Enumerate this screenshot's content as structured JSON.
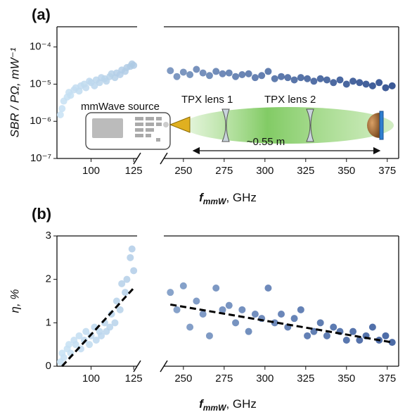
{
  "chart_data": [
    {
      "type": "scatter",
      "title": "(a)",
      "y_label": "SBR / PΩ, mW⁻¹",
      "x_label": {
        "symbol": "f",
        "subscript": "mmW",
        "unit": ", GHz"
      },
      "log_y": true,
      "ylim": [
        1e-07,
        0.00035
      ],
      "yticks": [
        {
          "value": 1e-07,
          "label": "10⁻⁷"
        },
        {
          "value": 1e-06,
          "label": "10⁻⁶"
        },
        {
          "value": 1e-05,
          "label": "10⁻⁵"
        },
        {
          "value": 0.0001,
          "label": "10⁻⁴"
        }
      ],
      "x_segments": [
        {
          "xlim": [
            80,
            127
          ],
          "xticks": [
            100,
            125
          ]
        },
        {
          "xlim": [
            238,
            382
          ],
          "xticks": [
            250,
            275,
            300,
            325,
            350,
            375
          ]
        }
      ],
      "colormap": [
        "#c9e3f5",
        "#173a82"
      ],
      "groups": [
        {
          "x": [
            82,
            83,
            84,
            86,
            87,
            88,
            90,
            91,
            93,
            94,
            96,
            97,
            99,
            100,
            102,
            103,
            105,
            106,
            108,
            109,
            111,
            112,
            114,
            115,
            117,
            118,
            120,
            121,
            123,
            124,
            125
          ],
          "values": [
            1.5e-06,
            2.2e-06,
            3.5e-06,
            4.5e-06,
            6e-06,
            5e-06,
            7e-06,
            8e-06,
            6.5e-06,
            9e-06,
            1e-05,
            8e-06,
            1.2e-05,
            1.1e-05,
            9e-06,
            1.3e-05,
            1.1e-05,
            1.5e-05,
            1.4e-05,
            1.2e-05,
            1.6e-05,
            1.9e-05,
            1.5e-05,
            2e-05,
            1.8e-05,
            2.4e-05,
            2.2e-05,
            2.8e-05,
            3e-05,
            3.5e-05,
            3.2e-05
          ]
        },
        {
          "x": [
            242,
            246,
            250,
            254,
            258,
            262,
            266,
            270,
            274,
            278,
            282,
            286,
            290,
            294,
            298,
            302,
            306,
            310,
            314,
            318,
            322,
            326,
            330,
            334,
            338,
            342,
            346,
            350,
            354,
            358,
            362,
            366,
            370,
            374,
            378
          ],
          "values": [
            2.3e-05,
            1.6e-05,
            2.1e-05,
            1.8e-05,
            2.5e-05,
            2e-05,
            1.7e-05,
            2.2e-05,
            1.9e-05,
            2e-05,
            1.6e-05,
            1.8e-05,
            1.9e-05,
            1.5e-05,
            1.7e-05,
            2.2e-05,
            1.4e-05,
            1.6e-05,
            1.5e-05,
            1.3e-05,
            1.5e-05,
            1.4e-05,
            1.2e-05,
            1.4e-05,
            1.3e-05,
            1.1e-05,
            1.3e-05,
            1e-05,
            1.2e-05,
            1.1e-05,
            1e-05,
            9e-06,
            1.1e-05,
            8e-06,
            9e-06
          ]
        }
      ],
      "annotations": {
        "source": "mmWave source",
        "lens1": "TPX lens 1",
        "lens2": "TPX lens 2",
        "distance": "~0.55 m"
      }
    },
    {
      "type": "scatter",
      "title": "(b)",
      "y_label": "η, %",
      "x_label": {
        "symbol": "f",
        "subscript": "mmW",
        "unit": ", GHz"
      },
      "log_y": false,
      "ylim": [
        0,
        3
      ],
      "yticks": [
        0,
        1,
        2,
        3
      ],
      "x_segments": [
        {
          "xlim": [
            80,
            127
          ],
          "xticks": [
            100,
            125
          ]
        },
        {
          "xlim": [
            238,
            382
          ],
          "xticks": [
            250,
            275,
            300,
            325,
            350,
            375
          ]
        }
      ],
      "colormap": [
        "#c9e3f5",
        "#2b4f96"
      ],
      "groups": [
        {
          "x": [
            82,
            83,
            84,
            86,
            87,
            88,
            90,
            91,
            93,
            94,
            96,
            97,
            99,
            100,
            102,
            103,
            105,
            106,
            108,
            109,
            111,
            112,
            114,
            115,
            117,
            118,
            120,
            121,
            123,
            124,
            125
          ],
          "values": [
            0.1,
            0.3,
            0.2,
            0.4,
            0.5,
            0.3,
            0.6,
            0.5,
            0.7,
            0.4,
            0.6,
            0.8,
            0.5,
            0.7,
            0.9,
            0.6,
            0.8,
            0.7,
            1.0,
            0.8,
            0.9,
            1.2,
            1.0,
            1.5,
            1.3,
            1.9,
            1.7,
            2.0,
            2.5,
            2.7,
            2.2
          ]
        },
        {
          "x": [
            242,
            246,
            250,
            254,
            258,
            262,
            266,
            270,
            274,
            278,
            282,
            286,
            290,
            294,
            298,
            302,
            306,
            310,
            314,
            318,
            322,
            326,
            330,
            334,
            338,
            342,
            346,
            350,
            354,
            358,
            362,
            366,
            370,
            374,
            378
          ],
          "values": [
            1.7,
            1.3,
            1.85,
            0.9,
            1.5,
            1.2,
            0.7,
            1.8,
            1.3,
            1.4,
            1.0,
            1.3,
            0.8,
            1.2,
            1.1,
            1.8,
            1.0,
            1.2,
            0.9,
            1.1,
            1.3,
            0.7,
            0.8,
            1.0,
            0.7,
            0.9,
            0.8,
            0.6,
            0.8,
            0.6,
            0.7,
            0.9,
            0.6,
            0.7,
            0.55
          ]
        }
      ],
      "fit_color": "#000000",
      "fit_lines": [
        {
          "x": [
            83,
            125
          ],
          "values": [
            0,
            1.8
          ]
        },
        {
          "x": [
            242,
            378
          ],
          "values": [
            1.42,
            0.55
          ]
        }
      ]
    }
  ]
}
